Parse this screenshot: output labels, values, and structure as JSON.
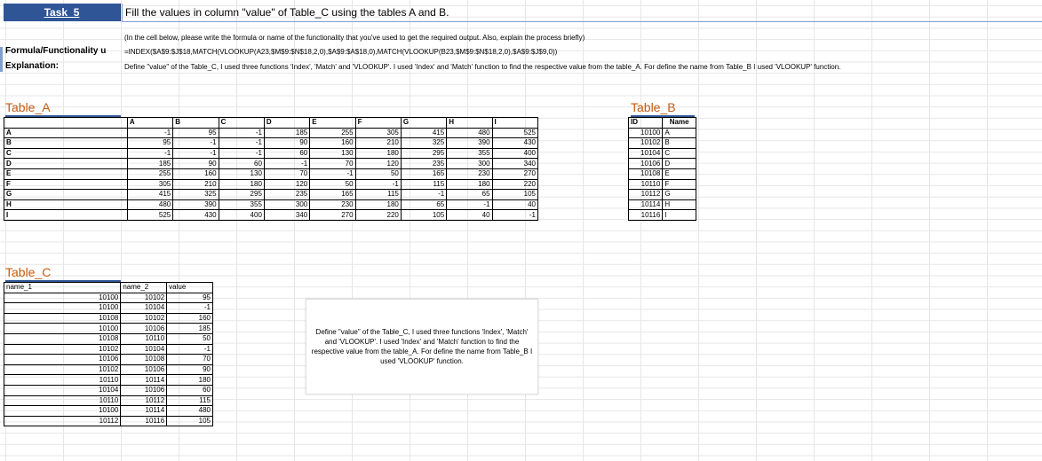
{
  "task": {
    "label": "Task_5",
    "title": "Fill the values in column \"value\" of Table_C using the tables A and B."
  },
  "instructions": "(In the cell below, please write the formula or name of the functionality that you've used to get the required output. Also, explain the process briefly)",
  "formula": {
    "label": "Formula/Functionality u",
    "value": "=INDEX($A$9:$J$18,MATCH(VLOOKUP(A23,$M$9:$N$18,2,0),$A$9:$A$18,0),MATCH(VLOOKUP(B23,$M$9:$N$18,2,0),$A$9:$J$9,0))"
  },
  "explanation": {
    "label": "Explanation:",
    "value": "Define \"value\" of the Table_C, I used three functions 'Index', 'Match' and 'VLOOKUP'. I used 'Index' and 'Match' function to find the respective value from the  table_A. For define the name from Table_B I used 'VLOOKUP' function."
  },
  "table_a": {
    "title": "Table_A",
    "columns": [
      "A",
      "B",
      "C",
      "D",
      "E",
      "F",
      "G",
      "H",
      "I"
    ],
    "rows": [
      {
        "label": "A",
        "values": [
          "-1",
          "95",
          "-1",
          "185",
          "255",
          "305",
          "415",
          "480",
          "525"
        ]
      },
      {
        "label": "B",
        "values": [
          "95",
          "-1",
          "-1",
          "90",
          "160",
          "210",
          "325",
          "390",
          "430"
        ]
      },
      {
        "label": "C",
        "values": [
          "-1",
          "-1",
          "-1",
          "60",
          "130",
          "180",
          "295",
          "355",
          "400"
        ]
      },
      {
        "label": "D",
        "values": [
          "185",
          "90",
          "60",
          "-1",
          "70",
          "120",
          "235",
          "300",
          "340"
        ]
      },
      {
        "label": "E",
        "values": [
          "255",
          "160",
          "130",
          "70",
          "-1",
          "50",
          "165",
          "230",
          "270"
        ]
      },
      {
        "label": "F",
        "values": [
          "305",
          "210",
          "180",
          "120",
          "50",
          "-1",
          "115",
          "180",
          "220"
        ]
      },
      {
        "label": "G",
        "values": [
          "415",
          "325",
          "295",
          "235",
          "165",
          "115",
          "-1",
          "65",
          "105"
        ]
      },
      {
        "label": "H",
        "values": [
          "480",
          "390",
          "355",
          "300",
          "230",
          "180",
          "65",
          "-1",
          "40"
        ]
      },
      {
        "label": "I",
        "values": [
          "525",
          "430",
          "400",
          "340",
          "270",
          "220",
          "105",
          "40",
          "-1"
        ]
      }
    ]
  },
  "table_b": {
    "title": "Table_B",
    "columns": [
      "ID",
      "Name"
    ],
    "rows": [
      [
        "10100",
        "A"
      ],
      [
        "10102",
        "B"
      ],
      [
        "10104",
        "C"
      ],
      [
        "10106",
        "D"
      ],
      [
        "10108",
        "E"
      ],
      [
        "10110",
        "F"
      ],
      [
        "10112",
        "G"
      ],
      [
        "10114",
        "H"
      ],
      [
        "10116",
        "I"
      ]
    ]
  },
  "table_c": {
    "title": "Table_C",
    "columns": [
      "name_1",
      "name_2",
      "value"
    ],
    "rows": [
      [
        "10100",
        "10102",
        "95"
      ],
      [
        "10100",
        "10104",
        "-1"
      ],
      [
        "10108",
        "10102",
        "160"
      ],
      [
        "10100",
        "10106",
        "185"
      ],
      [
        "10108",
        "10110",
        "50"
      ],
      [
        "10102",
        "10104",
        "-1"
      ],
      [
        "10106",
        "10108",
        "70"
      ],
      [
        "10102",
        "10106",
        "90"
      ],
      [
        "10110",
        "10114",
        "180"
      ],
      [
        "10104",
        "10106",
        "60"
      ],
      [
        "10110",
        "10112",
        "115"
      ],
      [
        "10100",
        "10114",
        "480"
      ],
      [
        "10112",
        "10116",
        "105"
      ]
    ]
  },
  "textbox": "Define \"value\" of the  Table_C, I used three functions 'Index', 'Match' and 'VLOOKUP'. I used  'Index' and 'Match' function to find the respective value from the  table_A. For define the name from Table_B I used 'VLOOKUP' function."
}
